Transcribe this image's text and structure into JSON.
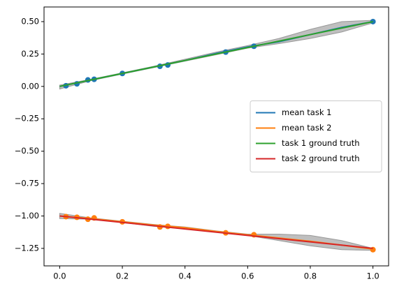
{
  "chart_data": {
    "type": "line",
    "x": [
      0,
      0.1,
      0.2,
      0.3,
      0.4,
      0.5,
      0.6,
      0.7,
      0.8,
      0.9,
      1.0
    ],
    "series": [
      {
        "name": "mean task 1",
        "color": "#1f77b4",
        "values": [
          0.0,
          0.05,
          0.1,
          0.15,
          0.2,
          0.255,
          0.305,
          0.345,
          0.4,
          0.455,
          0.5
        ]
      },
      {
        "name": "mean task 2",
        "color": "#ff7f0e",
        "values": [
          -1.0,
          -1.02,
          -1.045,
          -1.07,
          -1.09,
          -1.12,
          -1.145,
          -1.17,
          -1.195,
          -1.225,
          -1.255
        ]
      },
      {
        "name": "task 1 ground truth",
        "color": "#2ca02c",
        "values": [
          0.0,
          0.05,
          0.1,
          0.15,
          0.2,
          0.25,
          0.3,
          0.35,
          0.4,
          0.45,
          0.5
        ]
      },
      {
        "name": "task 2 ground truth",
        "color": "#d62728",
        "values": [
          -1.0,
          -1.025,
          -1.05,
          -1.075,
          -1.1,
          -1.125,
          -1.15,
          -1.175,
          -1.2,
          -1.225,
          -1.25
        ]
      }
    ],
    "bands": [
      {
        "color": "#bfbfbf",
        "upper": [
          0.01,
          0.055,
          0.105,
          0.155,
          0.21,
          0.265,
          0.315,
          0.37,
          0.44,
          0.5,
          0.51
        ],
        "lower": [
          -0.02,
          0.045,
          0.095,
          0.145,
          0.195,
          0.245,
          0.295,
          0.33,
          0.37,
          0.42,
          0.49
        ]
      },
      {
        "color": "#bfbfbf",
        "upper": [
          -0.98,
          -1.015,
          -1.04,
          -1.065,
          -1.085,
          -1.115,
          -1.14,
          -1.14,
          -1.15,
          -1.19,
          -1.25
        ],
        "lower": [
          -1.02,
          -1.025,
          -1.05,
          -1.08,
          -1.1,
          -1.125,
          -1.15,
          -1.19,
          -1.23,
          -1.26,
          -1.265
        ]
      }
    ],
    "scatter": [
      {
        "color": "#1f77b4",
        "x": [
          0.02,
          0.055,
          0.09,
          0.11,
          0.2,
          0.32,
          0.345,
          0.53,
          0.62,
          1.0
        ],
        "y": [
          0.005,
          0.02,
          0.05,
          0.055,
          0.1,
          0.155,
          0.165,
          0.265,
          0.31,
          0.5
        ]
      },
      {
        "color": "#ff7f0e",
        "x": [
          0.02,
          0.055,
          0.09,
          0.11,
          0.2,
          0.32,
          0.345,
          0.53,
          0.62,
          1.0
        ],
        "y": [
          -1.005,
          -1.01,
          -1.025,
          -1.015,
          -1.045,
          -1.085,
          -1.08,
          -1.13,
          -1.145,
          -1.26
        ]
      }
    ],
    "xlim": [
      -0.05,
      1.05
    ],
    "ylim": [
      -1.385,
      0.613
    ],
    "xticks": [
      {
        "value": 0,
        "label": "0.0"
      },
      0.2,
      0.4,
      0.6,
      0.8,
      {
        "value": 1,
        "label": "1.0"
      }
    ],
    "yticks": [
      {
        "value": -1.25,
        "label": "−1.25"
      },
      {
        "value": -1,
        "label": "−1.00"
      },
      {
        "value": -0.75,
        "label": "−0.75"
      },
      {
        "value": -0.5,
        "label": "−0.50"
      },
      {
        "value": -0.25,
        "label": "−0.25"
      },
      {
        "value": 0,
        "label": "0.00"
      },
      {
        "value": 0.25,
        "label": "0.25"
      },
      {
        "value": 0.5,
        "label": "0.50"
      }
    ],
    "legend": "center right"
  }
}
